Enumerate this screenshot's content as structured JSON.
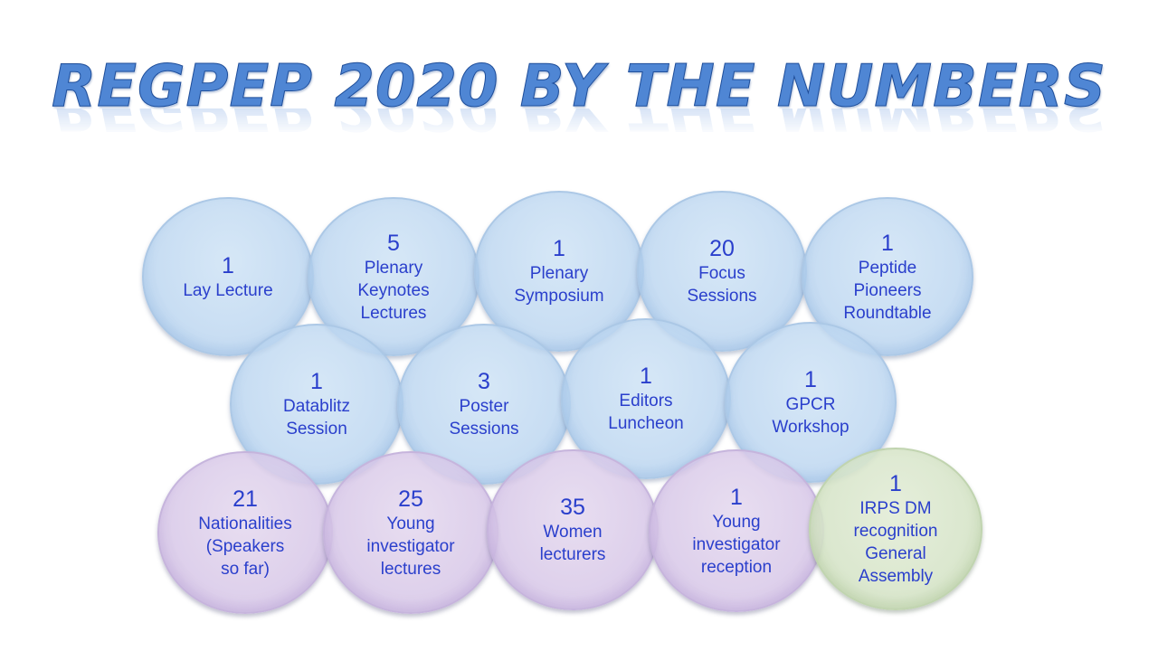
{
  "title": "REGPEP 2020 BY THE NUMBERS",
  "colors": {
    "title": "#4f86d4",
    "text": "#2a3fcc",
    "blue_bubble": "#c5dcf2",
    "purple_bubble": "#ddd0ea",
    "green_bubble": "#dbe7cf"
  },
  "bubbles": [
    {
      "number": "1",
      "label": "Lay Lecture"
    },
    {
      "number": "5",
      "label": "Plenary\nKeynotes\nLectures"
    },
    {
      "number": "1",
      "label": "Plenary\nSymposium"
    },
    {
      "number": "20",
      "label": "Focus\nSessions"
    },
    {
      "number": "1",
      "label": "Peptide\nPioneers\nRoundtable"
    },
    {
      "number": "1",
      "label": "Datablitz\nSession"
    },
    {
      "number": "3",
      "label": "Poster\nSessions"
    },
    {
      "number": "1",
      "label": "Editors\nLuncheon"
    },
    {
      "number": "1",
      "label": "GPCR\nWorkshop"
    },
    {
      "number": "21",
      "label": "Nationalities\n(Speakers\nso far)"
    },
    {
      "number": "25",
      "label": "Young\ninvestigator\nlectures"
    },
    {
      "number": "35",
      "label": "Women\nlecturers"
    },
    {
      "number": "1",
      "label": "Young\ninvestigator\nreception"
    },
    {
      "number": "1",
      "label": "IRPS DM\nrecognition\nGeneral\nAssembly"
    }
  ]
}
